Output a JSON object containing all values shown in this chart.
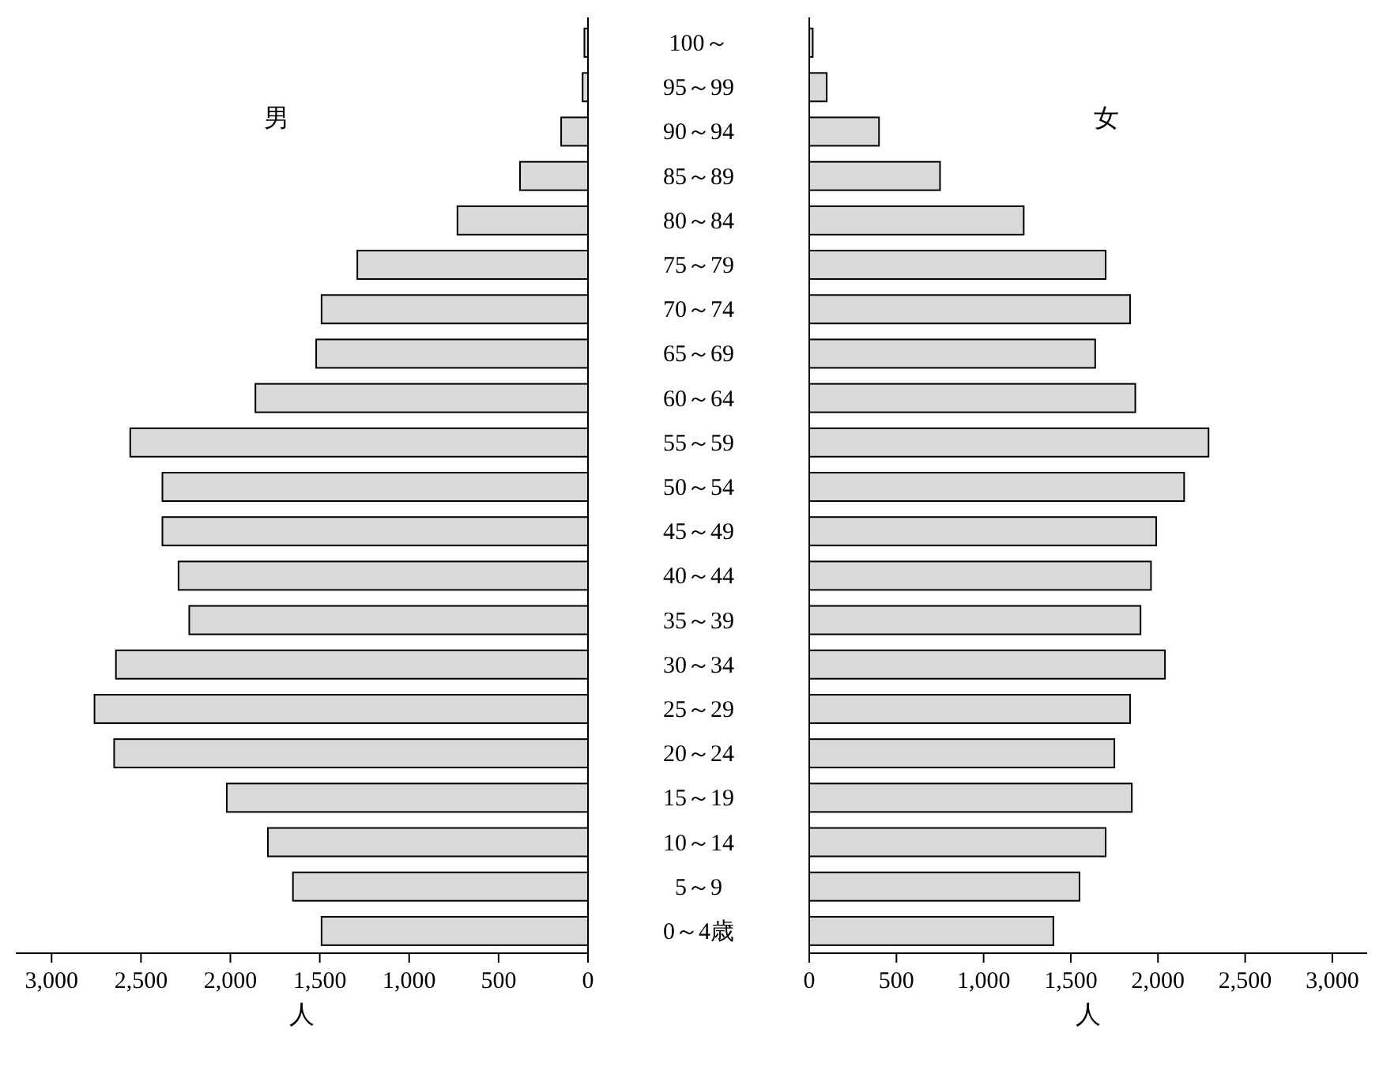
{
  "chart_data": [
    {
      "type": "bar",
      "orientation": "horizontal",
      "annotations": [
        "男"
      ],
      "xlabel": "人",
      "color": "#d9d9d9",
      "categories": [
        "100～",
        "95～99",
        "90～94",
        "85～89",
        "80～84",
        "75～79",
        "70～74",
        "65～69",
        "60～64",
        "55～59",
        "50～54",
        "45～49",
        "40～44",
        "35～39",
        "30～34",
        "25～29",
        "20～24",
        "15～19",
        "10～14",
        "5～9",
        "0～4歳"
      ],
      "values": [
        20,
        30,
        150,
        380,
        730,
        1290,
        1490,
        1520,
        1860,
        2560,
        2380,
        2380,
        2290,
        2230,
        2640,
        2760,
        2650,
        2020,
        1790,
        1650,
        1490
      ],
      "xlim": [
        3200,
        0
      ],
      "xticks": [
        {
          "value": 3000,
          "label": "3,000"
        },
        {
          "value": 2500,
          "label": "2,500"
        },
        {
          "value": 2000,
          "label": "2,000"
        },
        {
          "value": 1500,
          "label": "1,500"
        },
        {
          "value": 1000,
          "label": "1,000"
        },
        {
          "value": 500,
          "label": "500"
        },
        {
          "value": 0,
          "label": "0"
        }
      ]
    },
    {
      "type": "bar",
      "orientation": "horizontal",
      "annotations": [
        "女"
      ],
      "xlabel": "人",
      "color": "#d9d9d9",
      "tick_labels": "x",
      "categories": [
        "100～",
        "95～99",
        "90～94",
        "85～89",
        "80～84",
        "75～79",
        "70～74",
        "65～69",
        "60～64",
        "55～59",
        "50～54",
        "45～49",
        "40～44",
        "35～39",
        "30～34",
        "25～29",
        "20～24",
        "15～19",
        "10～14",
        "5～9",
        "0～4歳"
      ],
      "values": [
        20,
        100,
        400,
        750,
        1230,
        1700,
        1840,
        1640,
        1870,
        2290,
        2150,
        1990,
        1960,
        1900,
        2040,
        1840,
        1750,
        1850,
        1700,
        1550,
        1400
      ],
      "xlim": [
        0,
        3200
      ],
      "xticks": [
        {
          "value": 0,
          "label": "0"
        },
        {
          "value": 500,
          "label": "500"
        },
        {
          "value": 1000,
          "label": "1,000"
        },
        {
          "value": 1500,
          "label": "1,500"
        },
        {
          "value": 2000,
          "label": "2,000"
        },
        {
          "value": 2500,
          "label": "2,500"
        },
        {
          "value": 3000,
          "label": "3,000"
        }
      ]
    }
  ]
}
